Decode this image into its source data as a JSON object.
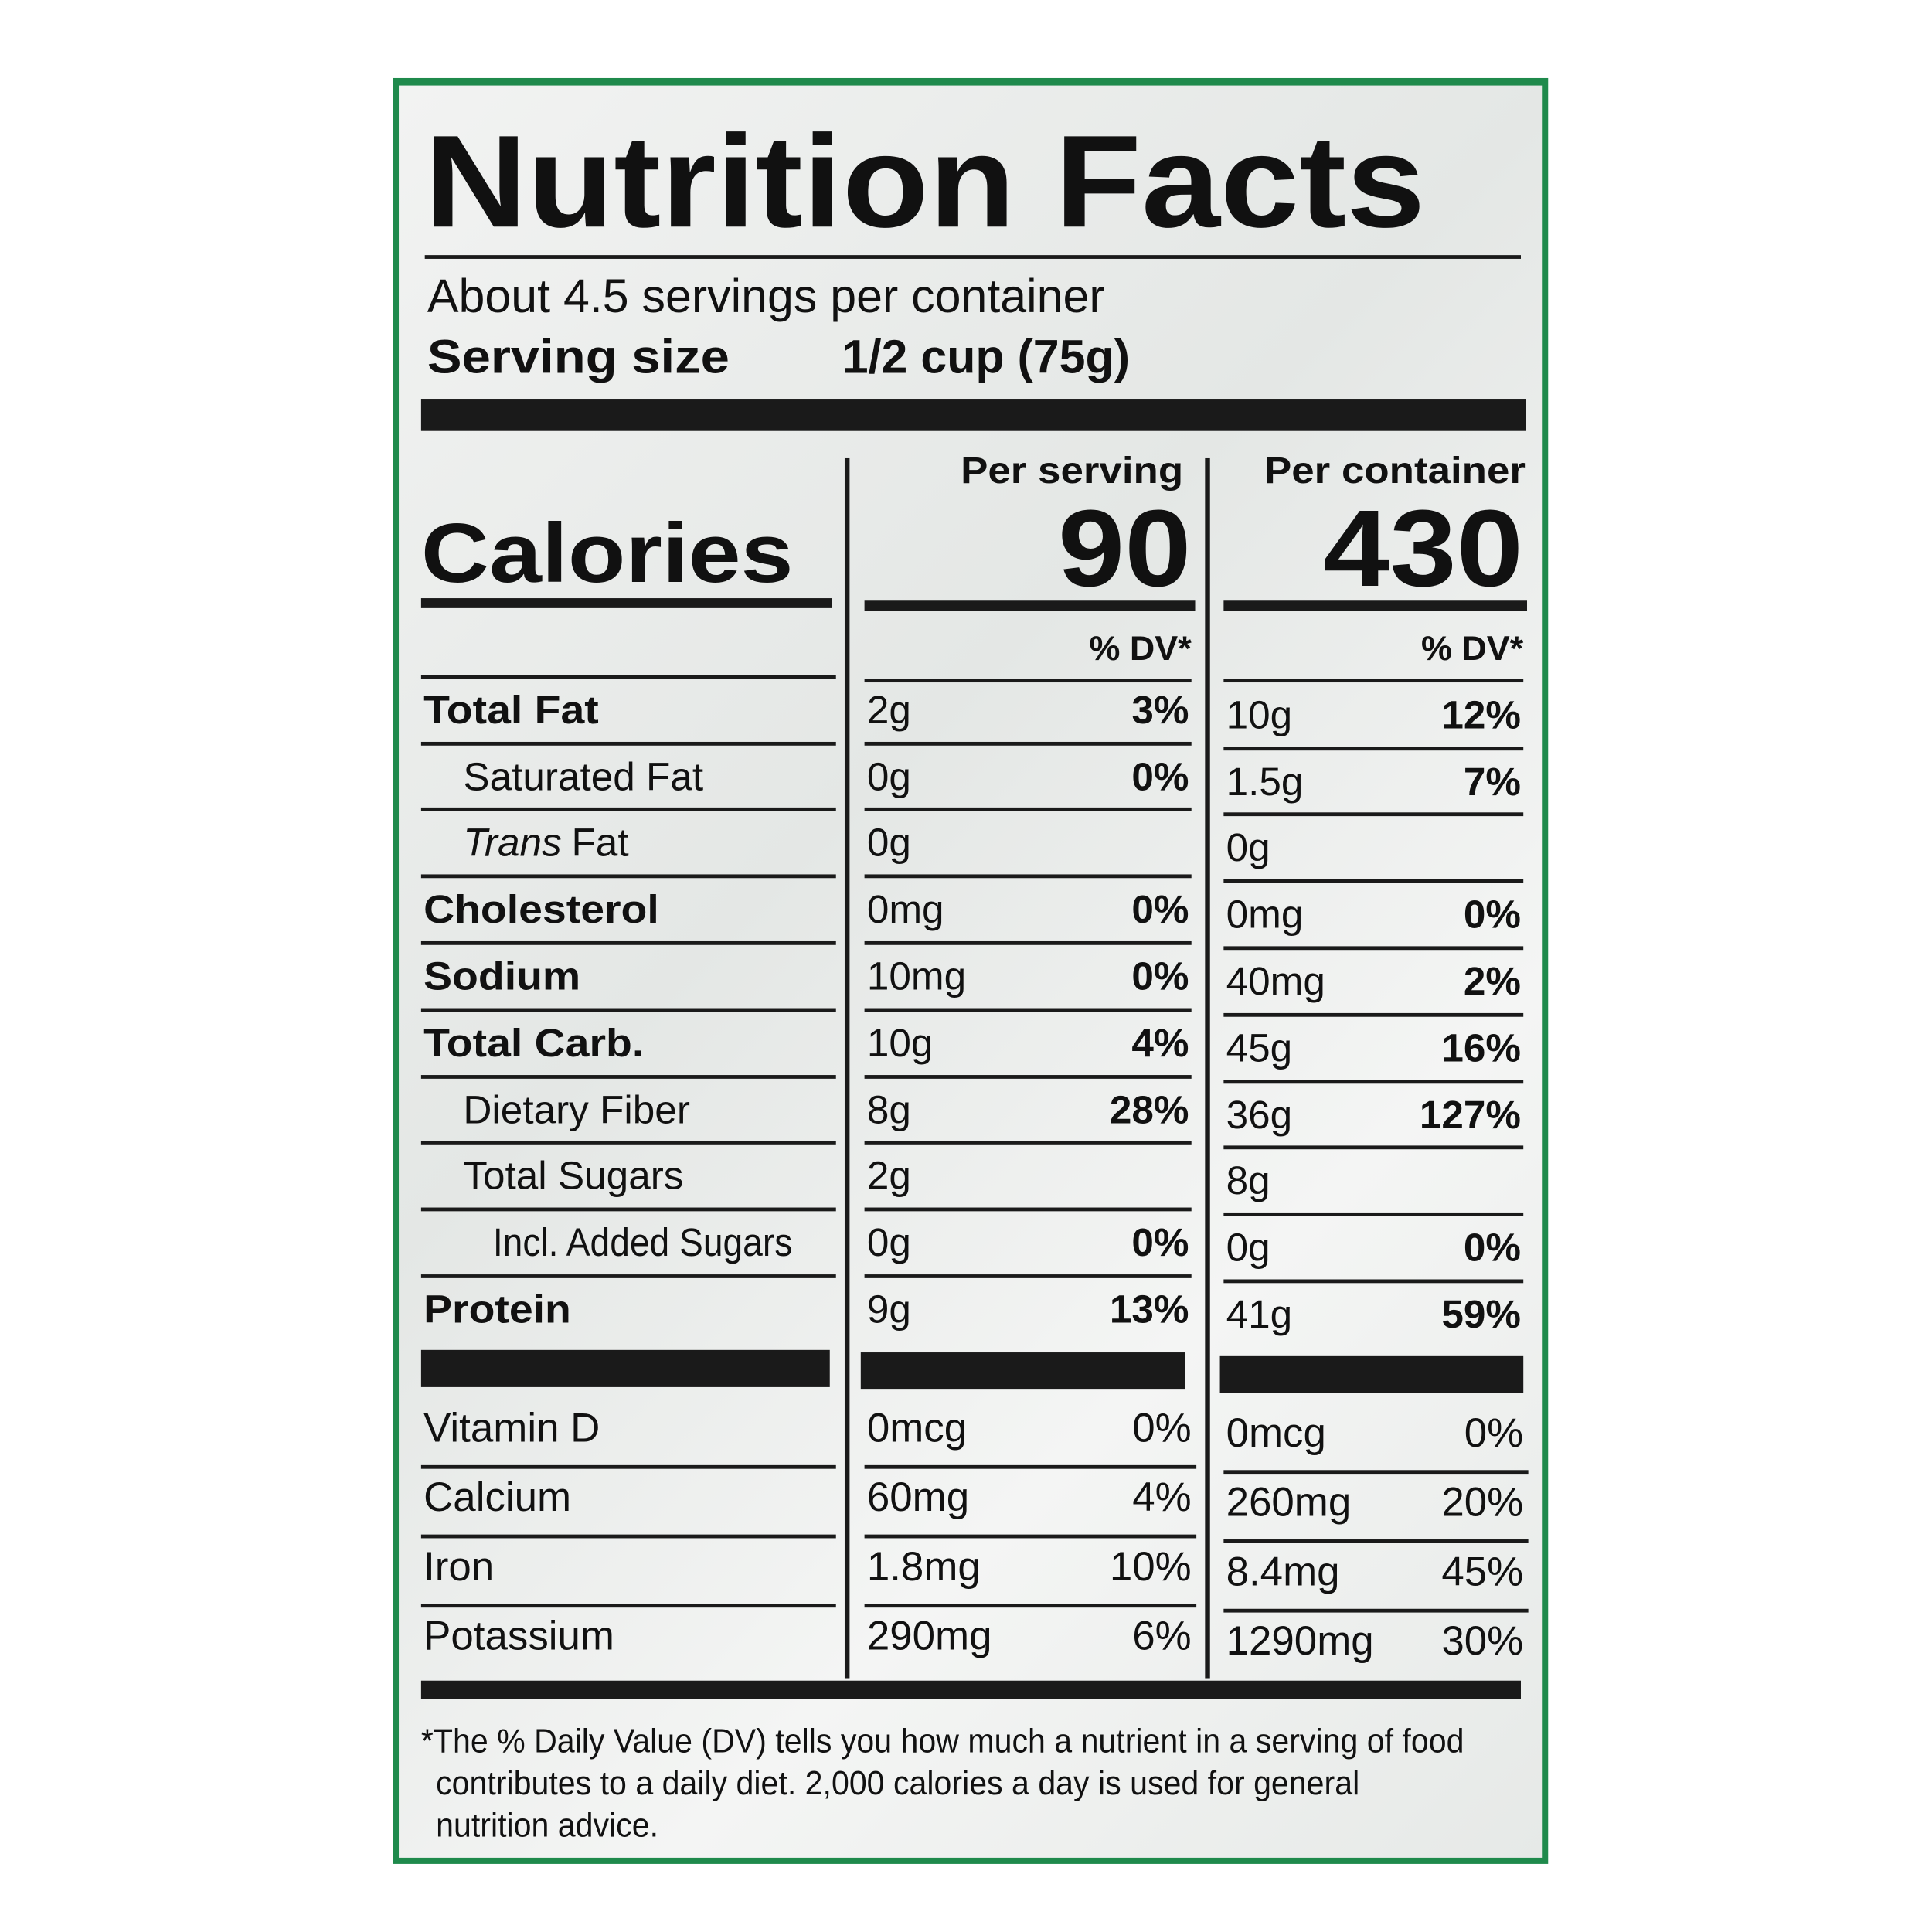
{
  "title": "Nutrition Facts",
  "servings": "About 4.5 servings per container",
  "serving_size": {
    "label": "Serving size",
    "value": "1/2 cup (75g)"
  },
  "columns": [
    "Per serving",
    "Per container"
  ],
  "calories": {
    "label": "Calories",
    "values": [
      "90",
      "430"
    ]
  },
  "dv_headers": [
    "% DV*",
    "% DV*"
  ],
  "nutrients": [
    {
      "name": "Total Fat",
      "level": 0,
      "serving": [
        "2g",
        "3%"
      ],
      "container": [
        "10g",
        "12%"
      ]
    },
    {
      "name": "Saturated Fat",
      "level": 1,
      "serving": [
        "0g",
        "0%"
      ],
      "container": [
        "1.5g",
        "7%"
      ]
    },
    {
      "name_italic": "Trans",
      "name": "Fat",
      "level": 1,
      "serving": [
        "0g"
      ],
      "container": [
        "0g"
      ]
    },
    {
      "name": "Cholesterol",
      "level": 0,
      "serving": [
        "0mg",
        "0%"
      ],
      "container": [
        "0mg",
        "0%"
      ]
    },
    {
      "name": "Sodium",
      "level": 0,
      "serving": [
        "10mg",
        "0%"
      ],
      "container": [
        "40mg",
        "2%"
      ]
    },
    {
      "name": "Total Carb.",
      "level": 0,
      "serving": [
        "10g",
        "4%"
      ],
      "container": [
        "45g",
        "16%"
      ]
    },
    {
      "name": "Dietary Fiber",
      "level": 1,
      "serving": [
        "8g",
        "28%"
      ],
      "container": [
        "36g",
        "127%"
      ]
    },
    {
      "name": "Total Sugars",
      "level": 1,
      "serving": [
        "2g"
      ],
      "container": [
        "8g"
      ]
    },
    {
      "name": "Incl. Added Sugars",
      "level": 2,
      "serving": [
        "0g",
        "0%"
      ],
      "container": [
        "0g",
        "0%"
      ]
    },
    {
      "name": "Protein",
      "level": 0,
      "serving": [
        "9g",
        "13%"
      ],
      "container": [
        "41g",
        "59%"
      ]
    }
  ],
  "vitamins": [
    {
      "name": "Vitamin D",
      "serving": [
        "0mcg",
        "0%"
      ],
      "container": [
        "0mcg",
        "0%"
      ]
    },
    {
      "name": "Calcium",
      "serving": [
        "60mg",
        "4%"
      ],
      "container": [
        "260mg",
        "20%"
      ]
    },
    {
      "name": "Iron",
      "serving": [
        "1.8mg",
        "10%"
      ],
      "container": [
        "8.4mg",
        "45%"
      ]
    },
    {
      "name": "Potassium",
      "serving": [
        "290mg",
        "6%"
      ],
      "container": [
        "1290mg",
        "30%"
      ]
    }
  ],
  "footnote": [
    "*The % Daily Value (DV) tells you how much a nutrient in a serving of food",
    "contributes to a daily diet. 2,000 calories a day is used for general",
    "nutrition advice."
  ]
}
